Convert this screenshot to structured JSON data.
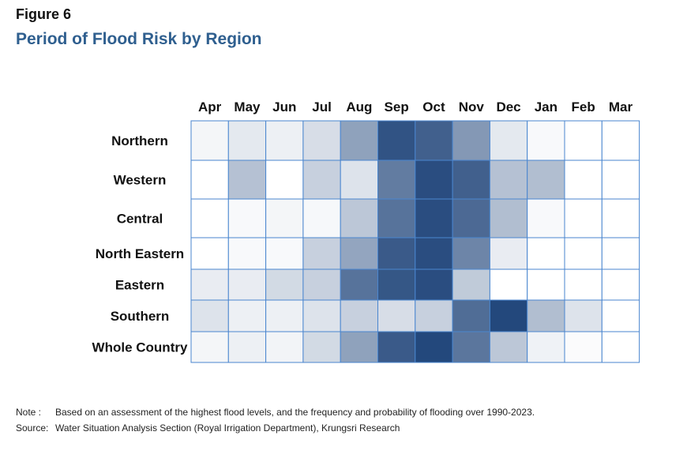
{
  "figure_label": "Figure 6",
  "title": "Period of Flood Risk by Region",
  "notes": [
    {
      "label": "Note :",
      "text": "Based on an assessment of the highest flood levels, and the frequency and probability of flooding over 1990-2023."
    },
    {
      "label": "Source:",
      "text": "Water Situation Analysis Section (Royal Irrigation Department), Krungsri Research"
    }
  ],
  "chart_data": {
    "type": "heatmap",
    "title": "Period of Flood Risk by Region",
    "x_categories": [
      "Apr",
      "May",
      "Jun",
      "Jul",
      "Aug",
      "Sep",
      "Oct",
      "Nov",
      "Dec",
      "Jan",
      "Feb",
      "Mar"
    ],
    "y_categories": [
      "Northern",
      "Western",
      "Central",
      "North Eastern",
      "Eastern",
      "Southern",
      "Whole Country"
    ],
    "value_scale": [
      0,
      1
    ],
    "color_low": "#ffffff",
    "color_high": "#1f4479",
    "cell_border_color": "#4a86cf",
    "legend": "none",
    "values": [
      [
        0.05,
        0.12,
        0.08,
        0.18,
        0.5,
        0.92,
        0.85,
        0.55,
        0.12,
        0.03,
        0.0,
        0.0
      ],
      [
        0.0,
        0.33,
        0.0,
        0.25,
        0.15,
        0.7,
        0.95,
        0.85,
        0.33,
        0.35,
        0.0,
        0.0
      ],
      [
        0.0,
        0.03,
        0.05,
        0.04,
        0.3,
        0.75,
        0.95,
        0.8,
        0.35,
        0.03,
        0.0,
        0.0
      ],
      [
        0.0,
        0.03,
        0.03,
        0.25,
        0.48,
        0.88,
        0.95,
        0.65,
        0.1,
        0.0,
        0.0,
        0.0
      ],
      [
        0.1,
        0.1,
        0.2,
        0.25,
        0.75,
        0.9,
        0.95,
        0.28,
        0.0,
        0.0,
        0.0,
        0.0
      ],
      [
        0.15,
        0.08,
        0.08,
        0.15,
        0.25,
        0.18,
        0.25,
        0.78,
        0.98,
        0.35,
        0.15,
        0.0
      ],
      [
        0.05,
        0.08,
        0.06,
        0.2,
        0.5,
        0.88,
        0.98,
        0.73,
        0.3,
        0.07,
        0.02,
        0.0
      ]
    ]
  }
}
